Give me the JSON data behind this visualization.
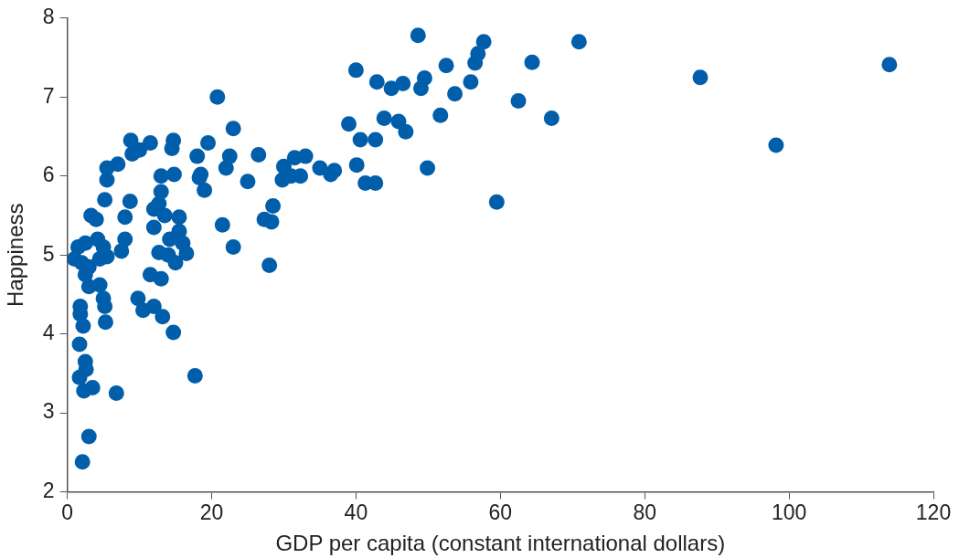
{
  "chart_data": {
    "type": "scatter",
    "xlabel": "GDP per capita (constant international dollars)",
    "ylabel": "Happiness",
    "xlim": [
      0,
      120
    ],
    "xticks": [
      0,
      20,
      40,
      60,
      80,
      100,
      120
    ],
    "ylim": [
      2,
      8
    ],
    "yticks": [
      2,
      3,
      4,
      5,
      6,
      7,
      8
    ],
    "grid": false,
    "legend": false,
    "marker": "circle",
    "series": [
      {
        "color": "#005eaa",
        "x": [
          1,
          1.5,
          2.5,
          2,
          2.5,
          3,
          4.5,
          5,
          5.5,
          3,
          4.5,
          5,
          5.2,
          5.3,
          1.8,
          1.8,
          2.2,
          1.7,
          2.5,
          2.6,
          1.7,
          2.3,
          3.5,
          6.8,
          3,
          2.1,
          3.3,
          4,
          4.2,
          5.2,
          5.5,
          5.5,
          7,
          8,
          8,
          7.5,
          8.7,
          8.8,
          9,
          10,
          11.5,
          9.8,
          10.5,
          11.5,
          12,
          13,
          13.2,
          14.7,
          12,
          12,
          12.7,
          13,
          13.5,
          12.7,
          13,
          14.8,
          14.5,
          14.7,
          14,
          14.2,
          15,
          15.5,
          15.5,
          16,
          16.5,
          17.7,
          18,
          18.5,
          18.3,
          19,
          19.5,
          20.8,
          21.5,
          22,
          22.5,
          23,
          23,
          25,
          26.5,
          27.3,
          28,
          28.3,
          28.5,
          29.8,
          30,
          31,
          31.5,
          32.3,
          33,
          35,
          36.5,
          37,
          48.6,
          57.7,
          56.9,
          56.5,
          64.4,
          40,
          42.9,
          44.9,
          46.5,
          49.5,
          49,
          52.5,
          55.9,
          53.7,
          62.5,
          51.7,
          43.9,
          45.9,
          46.9,
          39,
          40.6,
          42.7,
          40.1,
          41.3,
          42.7,
          49.9,
          59.5,
          70.9,
          67.1,
          87.7,
          98.2,
          113.9
        ],
        "values": [
          4.95,
          5.1,
          5.15,
          4.9,
          4.75,
          4.85,
          4.95,
          5.1,
          4.98,
          4.6,
          4.62,
          4.45,
          4.35,
          4.15,
          4.35,
          4.25,
          4.1,
          3.87,
          3.65,
          3.55,
          3.45,
          3.28,
          3.32,
          3.25,
          2.7,
          2.38,
          5.5,
          5.45,
          5.2,
          5.7,
          5.95,
          6.1,
          6.15,
          5.48,
          5.2,
          5.05,
          5.68,
          6.45,
          6.28,
          6.33,
          6.42,
          4.45,
          4.3,
          4.75,
          4.35,
          4.7,
          4.22,
          4.02,
          5.35,
          5.58,
          5.65,
          5.8,
          5.5,
          5.03,
          6.0,
          6.02,
          6.35,
          6.45,
          5.0,
          5.2,
          4.9,
          5.3,
          5.48,
          5.15,
          5.02,
          3.47,
          6.25,
          6.02,
          5.98,
          5.82,
          6.42,
          7.0,
          5.38,
          6.1,
          6.25,
          6.6,
          5.1,
          5.93,
          6.27,
          5.45,
          4.87,
          5.42,
          5.62,
          5.95,
          6.12,
          6.0,
          6.23,
          6.0,
          6.25,
          6.1,
          6.02,
          6.07,
          7.78,
          7.7,
          7.55,
          7.43,
          7.44,
          7.34,
          7.19,
          7.11,
          7.17,
          7.24,
          7.11,
          7.4,
          7.19,
          7.04,
          6.95,
          6.77,
          6.73,
          6.69,
          6.56,
          6.66,
          6.46,
          6.46,
          6.14,
          5.91,
          5.91,
          6.1,
          5.67,
          7.7,
          6.73,
          7.25,
          6.39,
          7.41
        ]
      }
    ]
  }
}
